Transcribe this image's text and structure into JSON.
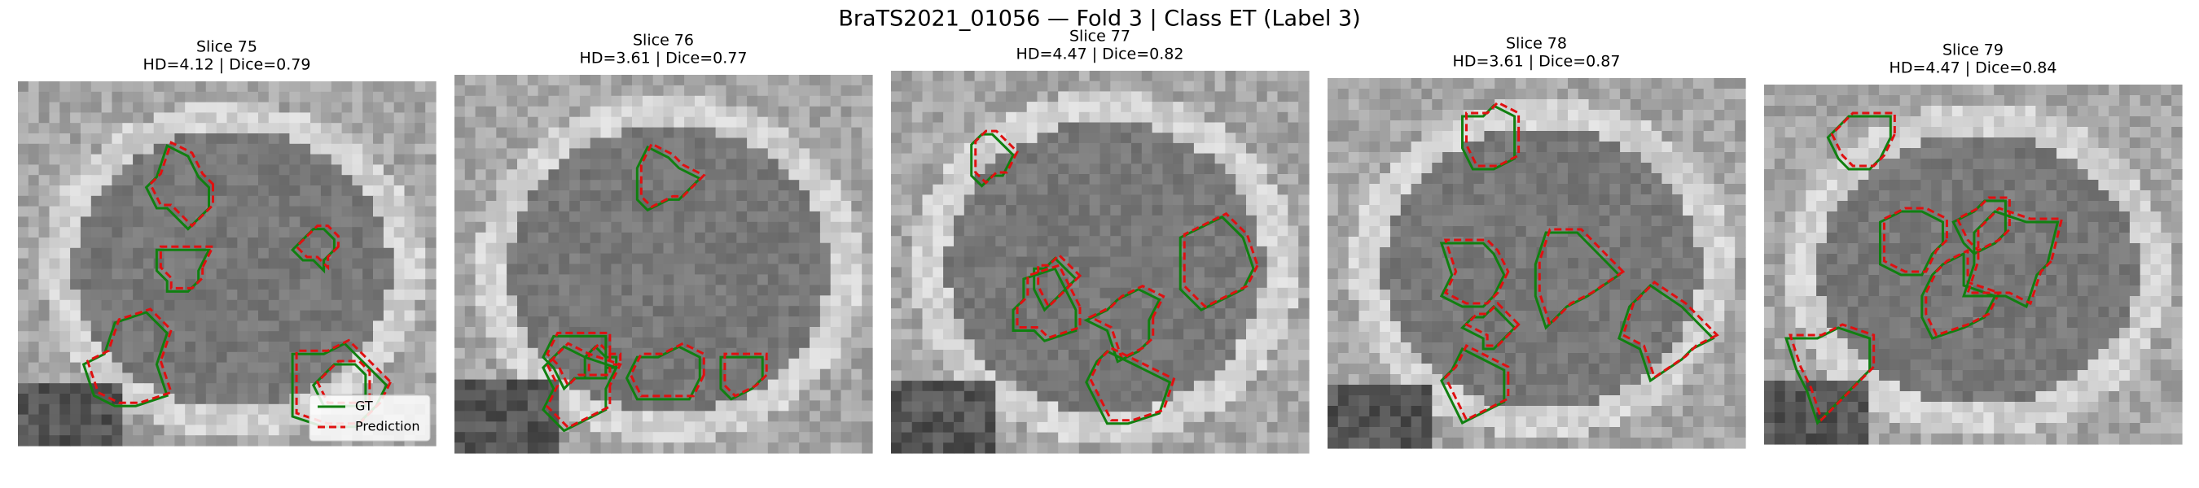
{
  "header": {
    "title": "BraTS2021_01056 — Fold 3 | Class ET (Label 3)"
  },
  "panels": [
    {
      "title": "Slice 75",
      "metrics": "HD=4.12 | Dice=0.79"
    },
    {
      "title": "Slice 76",
      "metrics": "HD=3.61 | Dice=0.77"
    },
    {
      "title": "Slice 77",
      "metrics": "HD=4.47 | Dice=0.82"
    },
    {
      "title": "Slice 78",
      "metrics": "HD=3.61 | Dice=0.87"
    },
    {
      "title": "Slice 79",
      "metrics": "HD=4.47 | Dice=0.84"
    }
  ],
  "legend": {
    "items": [
      "GT",
      "Prediction"
    ]
  }
}
